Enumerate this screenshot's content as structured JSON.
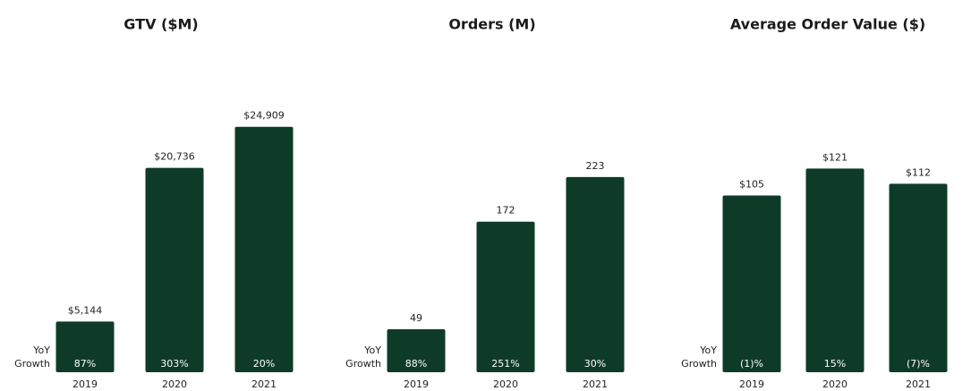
{
  "chart_data": [
    {
      "type": "bar",
      "title": "GTV ($M)",
      "categories": [
        "2019",
        "2020",
        "2021"
      ],
      "values": [
        5144,
        20736,
        24909
      ],
      "value_labels": [
        "$5,144",
        "$20,736",
        "$24,909"
      ],
      "row_label": [
        "YoY",
        "Growth"
      ],
      "growth_labels": [
        "87%",
        "303%",
        "20%"
      ],
      "color": "#0e3b27",
      "ylim": [
        0,
        28700
      ]
    },
    {
      "type": "bar",
      "title": "Orders (M)",
      "categories": [
        "2019",
        "2020",
        "2021"
      ],
      "values": [
        49,
        172,
        223
      ],
      "row_label": [
        "YoY",
        "Growth"
      ],
      "growth_labels": [
        "88%",
        "251%",
        "30%"
      ],
      "color": "#0e3b27",
      "ylim": [
        0,
        323
      ]
    },
    {
      "type": "bar",
      "title": "Average Order Value ($)",
      "categories": [
        "2019",
        "2020",
        "2021"
      ],
      "values": [
        105,
        121,
        112
      ],
      "value_labels": [
        "$105",
        "$121",
        "$112"
      ],
      "row_label": [
        "YoY",
        "Growth"
      ],
      "growth_labels": [
        "(1)%",
        "15%",
        "(7)%"
      ],
      "color": "#0e3b27",
      "ylim": [
        0,
        168
      ]
    }
  ]
}
